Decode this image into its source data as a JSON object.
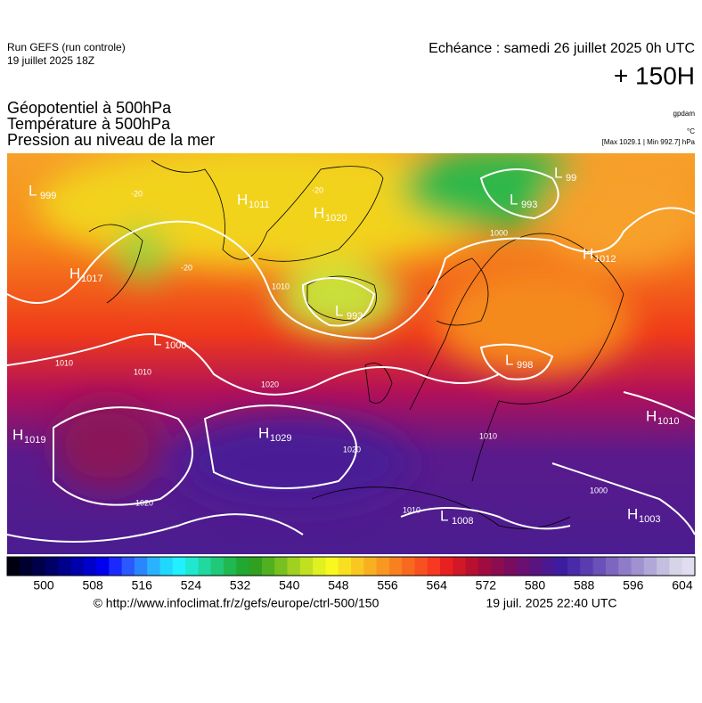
{
  "header": {
    "run": "Run GEFS (run controle)",
    "run_date": "19 juillet 2025 18Z",
    "valid": "Echéance : samedi 26 juillet 2025 0h UTC",
    "lead": "+ 150H"
  },
  "titles": [
    "Géopotentiel à 500hPa",
    "Température à 500hPa",
    "Pression au niveau de la mer"
  ],
  "units": [
    "gpdam",
    "°C",
    "[Max 1029.1 | Min 992.7] hPa"
  ],
  "centers": [
    {
      "type": "L",
      "value": "999"
    },
    {
      "type": "H",
      "value": "1017"
    },
    {
      "type": "H",
      "value": "1011"
    },
    {
      "type": "H",
      "value": "1020"
    },
    {
      "type": "L",
      "value": "993"
    },
    {
      "type": "L",
      "value": "1000"
    },
    {
      "type": "L",
      "value": "99"
    },
    {
      "type": "L",
      "value": "993"
    },
    {
      "type": "H",
      "value": "1012"
    },
    {
      "type": "L",
      "value": "998"
    },
    {
      "type": "H",
      "value": "1010"
    },
    {
      "type": "H",
      "value": "1019"
    },
    {
      "type": "H",
      "value": "1029"
    },
    {
      "type": "L",
      "value": "1008"
    },
    {
      "type": "H",
      "value": "1003"
    }
  ],
  "isobar_labels": [
    "1010",
    "1010",
    "1020",
    "1020",
    "1020",
    "1010",
    "1010",
    "1000",
    "1010",
    "1000",
    "-20",
    "-20",
    "-20"
  ],
  "colorbar_ticks": [
    "500",
    "508",
    "516",
    "524",
    "532",
    "540",
    "548",
    "556",
    "564",
    "572",
    "580",
    "588",
    "596",
    "604"
  ],
  "footer": {
    "source": "© http://www.infoclimat.fr/z/gefs/europe/ctrl-500/150",
    "generated": "19 juil. 2025 22:40 UTC"
  }
}
